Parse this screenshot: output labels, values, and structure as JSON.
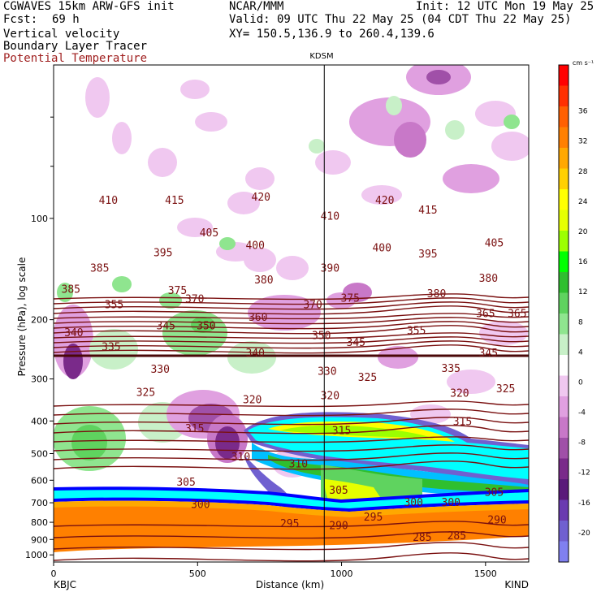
{
  "header": {
    "title": "CGWAVES 15km ARW-GFS init",
    "fcst_label": "Fcst:",
    "fcst_value": "69 h",
    "center": "NCAR/MMM",
    "init": "Init: 12 UTC Mon 19 May 25",
    "valid": "Valid: 09 UTC Thu 22 May 25 (04 CDT Thu 22 May 25)",
    "xy": "XY= 150.5,136.9 to 260.4,139.6",
    "field1": "Vertical velocity",
    "field2": "Boundary Layer Tracer",
    "field3": "Potential Temperature"
  },
  "colors": {
    "theta": "#7a1010",
    "field3_text": "#a02020",
    "positive_scale": [
      "#ffffff",
      "#c8f0c8",
      "#8fe58f",
      "#5fd35f",
      "#2fbf2f",
      "#00ff00",
      "#9cff00",
      "#e6ff00",
      "#ffff00",
      "#ffd000",
      "#ffa800",
      "#ff8000",
      "#ff6000",
      "#ff3000",
      "#ff0000"
    ],
    "negative_scale": [
      "#f0c8f0",
      "#e0a0e0",
      "#c878c8",
      "#a050a8",
      "#7a2a8a",
      "#5a1a7a",
      "#6a3ab0",
      "#7060d0",
      "#8080f0"
    ]
  },
  "chart_data": {
    "type": "heatmap",
    "title": "KDSM",
    "xlabel": "Distance (km)",
    "ylabel": "Pressure (hPa), log scale",
    "xlim": [
      0,
      1650
    ],
    "ylim": [
      1050,
      35
    ],
    "x_ticks": [
      0,
      500,
      1000,
      1500
    ],
    "y_ticks": [
      100,
      200,
      300,
      400,
      500,
      600,
      700,
      800,
      900,
      1000
    ],
    "left_station": "KBJC",
    "right_station": "KIND",
    "marker_x": 940,
    "colorbar": {
      "unit": "cm s⁻¹",
      "ticks": [
        36,
        32,
        28,
        24,
        20,
        16,
        12,
        8,
        4,
        0,
        -4,
        -8,
        -12,
        -16,
        -20
      ]
    },
    "theta_labels": [
      {
        "x": 190,
        "p": 88,
        "v": "410"
      },
      {
        "x": 420,
        "p": 88,
        "v": "415"
      },
      {
        "x": 720,
        "p": 86,
        "v": "420"
      },
      {
        "x": 960,
        "p": 98,
        "v": "410"
      },
      {
        "x": 1150,
        "p": 88,
        "v": "420"
      },
      {
        "x": 1300,
        "p": 94,
        "v": "415"
      },
      {
        "x": 540,
        "p": 110,
        "v": "405"
      },
      {
        "x": 700,
        "p": 120,
        "v": "400"
      },
      {
        "x": 380,
        "p": 126,
        "v": "395"
      },
      {
        "x": 1140,
        "p": 122,
        "v": "400"
      },
      {
        "x": 1300,
        "p": 127,
        "v": "395"
      },
      {
        "x": 1530,
        "p": 118,
        "v": "405"
      },
      {
        "x": 960,
        "p": 140,
        "v": "390"
      },
      {
        "x": 160,
        "p": 140,
        "v": "385"
      },
      {
        "x": 60,
        "p": 162,
        "v": "385"
      },
      {
        "x": 430,
        "p": 163,
        "v": "375"
      },
      {
        "x": 730,
        "p": 152,
        "v": "380"
      },
      {
        "x": 1510,
        "p": 150,
        "v": "380"
      },
      {
        "x": 1330,
        "p": 167,
        "v": "380"
      },
      {
        "x": 490,
        "p": 173,
        "v": "370"
      },
      {
        "x": 1030,
        "p": 172,
        "v": "375"
      },
      {
        "x": 900,
        "p": 180,
        "v": "370"
      },
      {
        "x": 210,
        "p": 180,
        "v": "355"
      },
      {
        "x": 710,
        "p": 196,
        "v": "360"
      },
      {
        "x": 1500,
        "p": 191,
        "v": "365"
      },
      {
        "x": 1610,
        "p": 191,
        "v": "365"
      },
      {
        "x": 390,
        "p": 208,
        "v": "345"
      },
      {
        "x": 530,
        "p": 208,
        "v": "350"
      },
      {
        "x": 1260,
        "p": 215,
        "v": "355"
      },
      {
        "x": 70,
        "p": 218,
        "v": "340"
      },
      {
        "x": 930,
        "p": 222,
        "v": "350"
      },
      {
        "x": 1050,
        "p": 233,
        "v": "345"
      },
      {
        "x": 200,
        "p": 240,
        "v": "335"
      },
      {
        "x": 700,
        "p": 250,
        "v": "340"
      },
      {
        "x": 1510,
        "p": 250,
        "v": "345"
      },
      {
        "x": 370,
        "p": 280,
        "v": "330"
      },
      {
        "x": 1380,
        "p": 278,
        "v": "335"
      },
      {
        "x": 950,
        "p": 284,
        "v": "330"
      },
      {
        "x": 1090,
        "p": 296,
        "v": "325"
      },
      {
        "x": 320,
        "p": 328,
        "v": "325"
      },
      {
        "x": 1570,
        "p": 320,
        "v": "325"
      },
      {
        "x": 960,
        "p": 335,
        "v": "320"
      },
      {
        "x": 1410,
        "p": 330,
        "v": "320"
      },
      {
        "x": 690,
        "p": 345,
        "v": "320"
      },
      {
        "x": 490,
        "p": 420,
        "v": "315"
      },
      {
        "x": 1000,
        "p": 425,
        "v": "315"
      },
      {
        "x": 1420,
        "p": 400,
        "v": "315"
      },
      {
        "x": 650,
        "p": 510,
        "v": "310"
      },
      {
        "x": 850,
        "p": 535,
        "v": "310"
      },
      {
        "x": 460,
        "p": 605,
        "v": "305"
      },
      {
        "x": 990,
        "p": 640,
        "v": "305"
      },
      {
        "x": 1530,
        "p": 650,
        "v": "305"
      },
      {
        "x": 510,
        "p": 705,
        "v": "300"
      },
      {
        "x": 1250,
        "p": 695,
        "v": "300"
      },
      {
        "x": 1380,
        "p": 695,
        "v": "300"
      },
      {
        "x": 820,
        "p": 805,
        "v": "295"
      },
      {
        "x": 1110,
        "p": 770,
        "v": "295"
      },
      {
        "x": 990,
        "p": 815,
        "v": "290"
      },
      {
        "x": 1540,
        "p": 785,
        "v": "290"
      },
      {
        "x": 1280,
        "p": 885,
        "v": "285"
      },
      {
        "x": 1400,
        "p": 875,
        "v": "285"
      }
    ]
  }
}
